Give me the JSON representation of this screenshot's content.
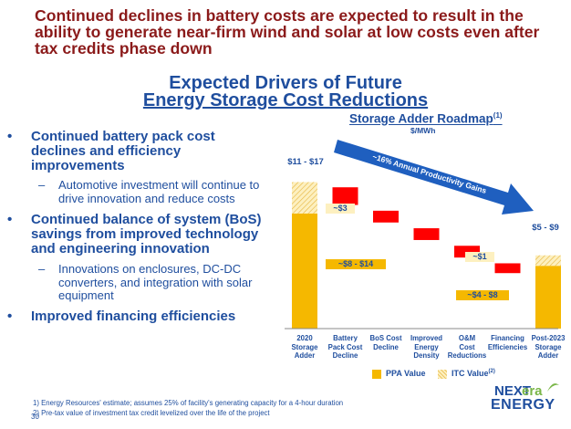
{
  "headline": "Continued declines in battery costs are expected to result in the ability to generate near-firm wind and solar at low costs even after tax credits phase down",
  "subtitle_line1": "Expected Drivers of Future",
  "subtitle_line2": "Energy Storage Cost Reductions",
  "bullets": [
    {
      "marker": "•",
      "text": "Continued battery pack cost declines and efficiency improvements"
    },
    {
      "marker": "–",
      "text": "Automotive investment will continue to drive innovation and reduce costs"
    },
    {
      "marker": "•",
      "text": "Continued balance of system (BoS) savings from improved technology and engineering innovation"
    },
    {
      "marker": "–",
      "text": "Innovations on enclosures, DC-DC converters, and integration with solar equipment"
    },
    {
      "marker": "•",
      "text": "Improved financing efficiencies"
    }
  ],
  "chart": {
    "title": "Storage Adder Roadmap",
    "title_sup": "(1)",
    "unit": "$/MWh",
    "arrow_label": "~16% Annual Productivity Gains",
    "bar_labels": {
      "start_top": "$11 - $17",
      "start_itc": "~$3",
      "start_ppa": "~$8 - $14",
      "end_top": "$5 - $9",
      "end_itc": "~$1",
      "end_ppa": "~$4 - $8"
    },
    "legend": {
      "ppa": "PPA Value",
      "itc": "ITC Value",
      "itc_sup": "(2)"
    },
    "colors": {
      "ppa": "#f5b800",
      "itc": "#fdf0c0",
      "decline": "#ff0000",
      "arrow": "#1f5fbf"
    }
  },
  "chart_data": {
    "type": "bar",
    "categories": [
      [
        "2020",
        "Storage",
        "Adder"
      ],
      [
        "Battery",
        "Pack Cost",
        "Decline"
      ],
      [
        "BoS Cost",
        "Decline"
      ],
      [
        "Improved",
        "Energy",
        "Density"
      ],
      [
        "O&M",
        "Cost",
        "Reductions"
      ],
      [
        "Financing",
        "Efficiencies"
      ],
      [
        "Post-2023",
        "Storage",
        "Adder"
      ]
    ],
    "series": [
      {
        "name": "PPA Value",
        "values": [
          11,
          null,
          null,
          null,
          null,
          null,
          6
        ]
      },
      {
        "name": "ITC Value",
        "values": [
          3,
          null,
          null,
          null,
          null,
          null,
          1
        ]
      }
    ],
    "declines": [
      2.25,
      1.5,
      1.5,
      1.5,
      1.25
    ],
    "start_total": 14,
    "end_total": 7,
    "ylim": [
      0,
      15
    ]
  },
  "footnotes": [
    "1)  Energy Resources' estimate; assumes 25% of facility's generating capacity for a 4-hour duration",
    "2)  Pre-tax value of investment tax credit levelized over the life of the project"
  ],
  "page_number": "30",
  "logo": {
    "next": "NEXT",
    "era": "era",
    "energy": "ENERGY"
  }
}
